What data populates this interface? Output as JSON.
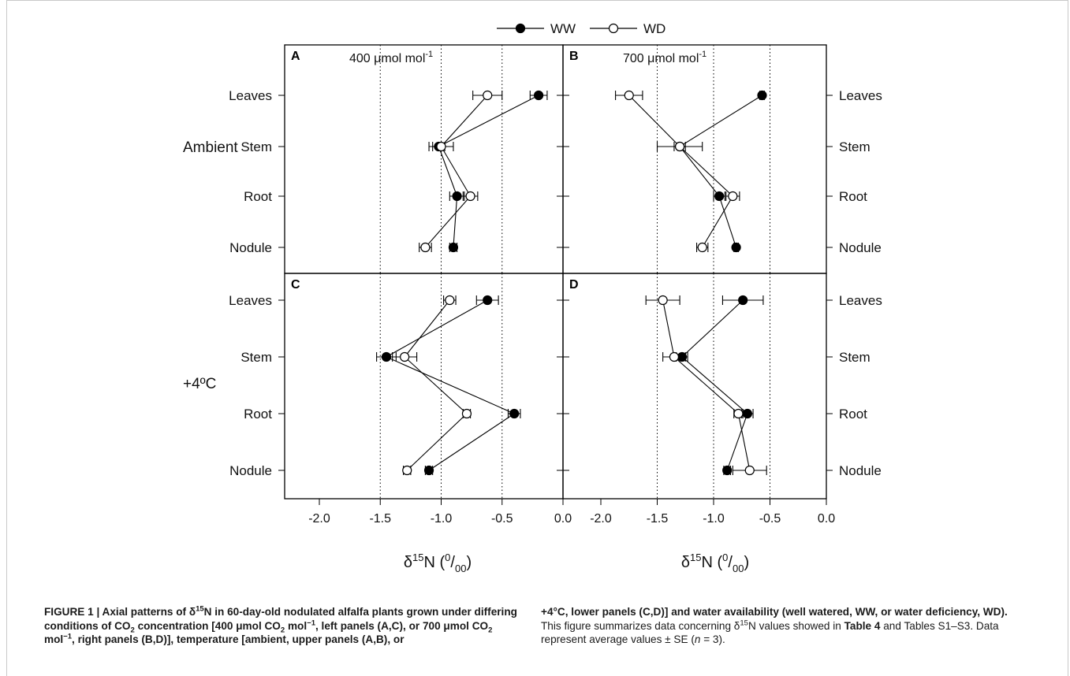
{
  "chart_data": {
    "type": "scatter",
    "legend": {
      "placement": "top-center",
      "entries": [
        {
          "label": "WW",
          "marker": "filled-circle"
        },
        {
          "label": "WD",
          "marker": "open-circle"
        }
      ]
    },
    "categories": [
      "Leaves",
      "Stem",
      "Root",
      "Nodule"
    ],
    "xticks": [
      "-2.0",
      "-1.5",
      "-1.0",
      "-0.5",
      "0.0"
    ],
    "xlim": [
      -2.0,
      0.0
    ],
    "xlabel_main": "δ",
    "xlabel_sup": "15",
    "xlabel_rest": "N (",
    "xlabel_unit_sup": "0",
    "xlabel_unit_mid": "/",
    "xlabel_unit_sub": "00",
    "xlabel_end": ")",
    "row_labels": [
      "Ambient",
      "+4ºC"
    ],
    "vertical_gridlines": [
      -1.5,
      -1.0,
      -0.5
    ],
    "panels": [
      {
        "letter": "A",
        "label_pre": "400 ",
        "label_mu": "μ",
        "label_post": "mol mol",
        "label_sup": "-1",
        "WW": [
          {
            "x": -0.2,
            "err": 0.07
          },
          {
            "x": -1.02,
            "err": 0.05
          },
          {
            "x": -0.87,
            "err": 0.06
          },
          {
            "x": -0.9,
            "err": 0.03
          }
        ],
        "WD": [
          {
            "x": -0.62,
            "err": 0.12
          },
          {
            "x": -1.0,
            "err": 0.1
          },
          {
            "x": -0.76,
            "err": 0.06
          },
          {
            "x": -1.13,
            "err": 0.05
          }
        ]
      },
      {
        "letter": "B",
        "label_pre": "700 ",
        "label_mu": "μ",
        "label_post": "mol mol",
        "label_sup": "-1",
        "WW": [
          {
            "x": -0.57,
            "err": 0.02
          },
          {
            "x": -1.3,
            "err": 0.05
          },
          {
            "x": -0.95,
            "err": 0.05
          },
          {
            "x": -0.8,
            "err": 0.02
          }
        ],
        "WD": [
          {
            "x": -1.75,
            "err": 0.12
          },
          {
            "x": -1.3,
            "err": 0.2
          },
          {
            "x": -0.83,
            "err": 0.06
          },
          {
            "x": -1.1,
            "err": 0.05
          }
        ]
      },
      {
        "letter": "C",
        "label_pre": "",
        "label_mu": "",
        "label_post": "",
        "label_sup": "",
        "WW": [
          {
            "x": -0.62,
            "err": 0.09
          },
          {
            "x": -1.45,
            "err": 0.08
          },
          {
            "x": -0.4,
            "err": 0.05
          },
          {
            "x": -1.1,
            "err": 0.03
          }
        ],
        "WD": [
          {
            "x": -0.93,
            "err": 0.05
          },
          {
            "x": -1.3,
            "err": 0.1
          },
          {
            "x": -0.79,
            "err": 0.03
          },
          {
            "x": -1.28,
            "err": 0.03
          }
        ]
      },
      {
        "letter": "D",
        "label_pre": "",
        "label_mu": "",
        "label_post": "",
        "label_sup": "",
        "WW": [
          {
            "x": -0.74,
            "err": 0.18
          },
          {
            "x": -1.28,
            "err": 0.05
          },
          {
            "x": -0.7,
            "err": 0.05
          },
          {
            "x": -0.88,
            "err": 0.03
          }
        ],
        "WD": [
          {
            "x": -1.45,
            "err": 0.15
          },
          {
            "x": -1.35,
            "err": 0.1
          },
          {
            "x": -0.78,
            "err": 0.04
          },
          {
            "x": -0.68,
            "err": 0.15
          }
        ]
      }
    ]
  },
  "caption": {
    "left": {
      "p1": "FIGURE 1 | Axial patterns of ",
      "delta": "δ",
      "sup15": "15",
      "p2": "N in 60-day-old nodulated alfalfa plants grown under differing conditions of CO",
      "sub2a": "2",
      "p3": " concentration [400 ",
      "mu1": "μ",
      "p4": "mol CO",
      "sub2b": "2",
      "p5": " mol",
      "supm1a": "−1",
      "p6": ", left panels (A,C), or 700 ",
      "mu2": "μ",
      "p7": "mol CO",
      "sub2c": "2",
      "p8": " mol",
      "supm1b": "−1",
      "p9": ", right panels (B,D)], temperature [ambient, upper panels (A,B), or"
    },
    "right": {
      "bold1": "+4°C, lower panels (C,D)] and water availability (well watered, WW, or water deficiency, WD).",
      "t1": " This figure summarizes data concerning ",
      "delta": "δ",
      "sup15": "15",
      "t2": "N values showed in ",
      "table4": "Table 4",
      "t3": " and Tables S1–S3. Data represent average values ± SE (",
      "n_italic": "n",
      "t4": " = 3)."
    }
  }
}
